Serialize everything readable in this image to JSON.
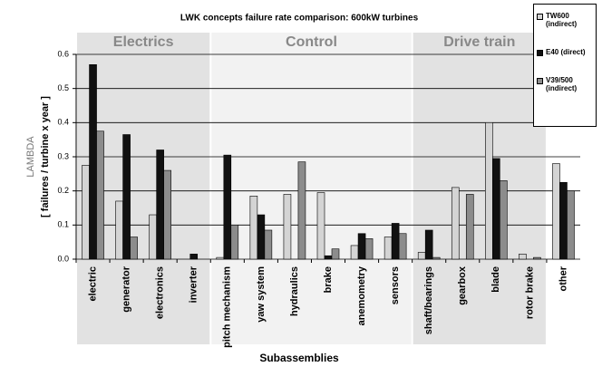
{
  "chart_data": {
    "type": "bar",
    "title": "LWK concepts failure rate comparison: 600kW turbines",
    "y_label_lines": [
      "LAMBDA",
      "[ failures / turbine x year ]"
    ],
    "x_label": "Subassemblies",
    "categories": [
      "electric",
      "generator",
      "electronics",
      "inverter",
      "pitch mechanism",
      "yaw system",
      "hydraulics",
      "brake",
      "anemometry",
      "sensors",
      "shaft/bearings",
      "gearbox",
      "blade",
      "rotor brake",
      "other"
    ],
    "groups": [
      {
        "name": "Electrics",
        "color": "#e2e2e2",
        "categories": [
          "electric",
          "generator",
          "electronics",
          "inverter"
        ]
      },
      {
        "name": "Control",
        "color": "#f2f2f2",
        "categories": [
          "pitch mechanism",
          "yaw system",
          "hydraulics",
          "brake",
          "anemometry",
          "sensors"
        ]
      },
      {
        "name": "Drive train",
        "color": "#e2e2e2",
        "categories": [
          "shaft/bearings",
          "gearbox",
          "blade",
          "rotor brake"
        ]
      }
    ],
    "series": [
      {
        "name": "TW600 (indirect)",
        "color": "#d4d4d4",
        "values": [
          0.275,
          0.17,
          0.13,
          0,
          0.005,
          0.185,
          0.19,
          0.195,
          0.04,
          0.065,
          0.02,
          0.21,
          0.4,
          0.015,
          0.28
        ]
      },
      {
        "name": "E40 (direct)",
        "color": "#111111",
        "values": [
          0.57,
          0.365,
          0.32,
          0.015,
          0.305,
          0.13,
          0,
          0.01,
          0.075,
          0.105,
          0.085,
          0,
          0.295,
          0,
          0.225
        ]
      },
      {
        "name": "V39/500 (indirect)",
        "color": "#8c8c8c",
        "values": [
          0.375,
          0.065,
          0.26,
          0,
          0.1,
          0.085,
          0.285,
          0.03,
          0.06,
          0.075,
          0.005,
          0.19,
          0.23,
          0.005,
          0.2
        ]
      }
    ],
    "ylim": [
      0,
      0.6
    ],
    "yticks": [
      {
        "value": 0,
        "label": "0.0"
      },
      0.1,
      0.2,
      0.3,
      0.4,
      0.5,
      0.6
    ],
    "grid": true
  }
}
